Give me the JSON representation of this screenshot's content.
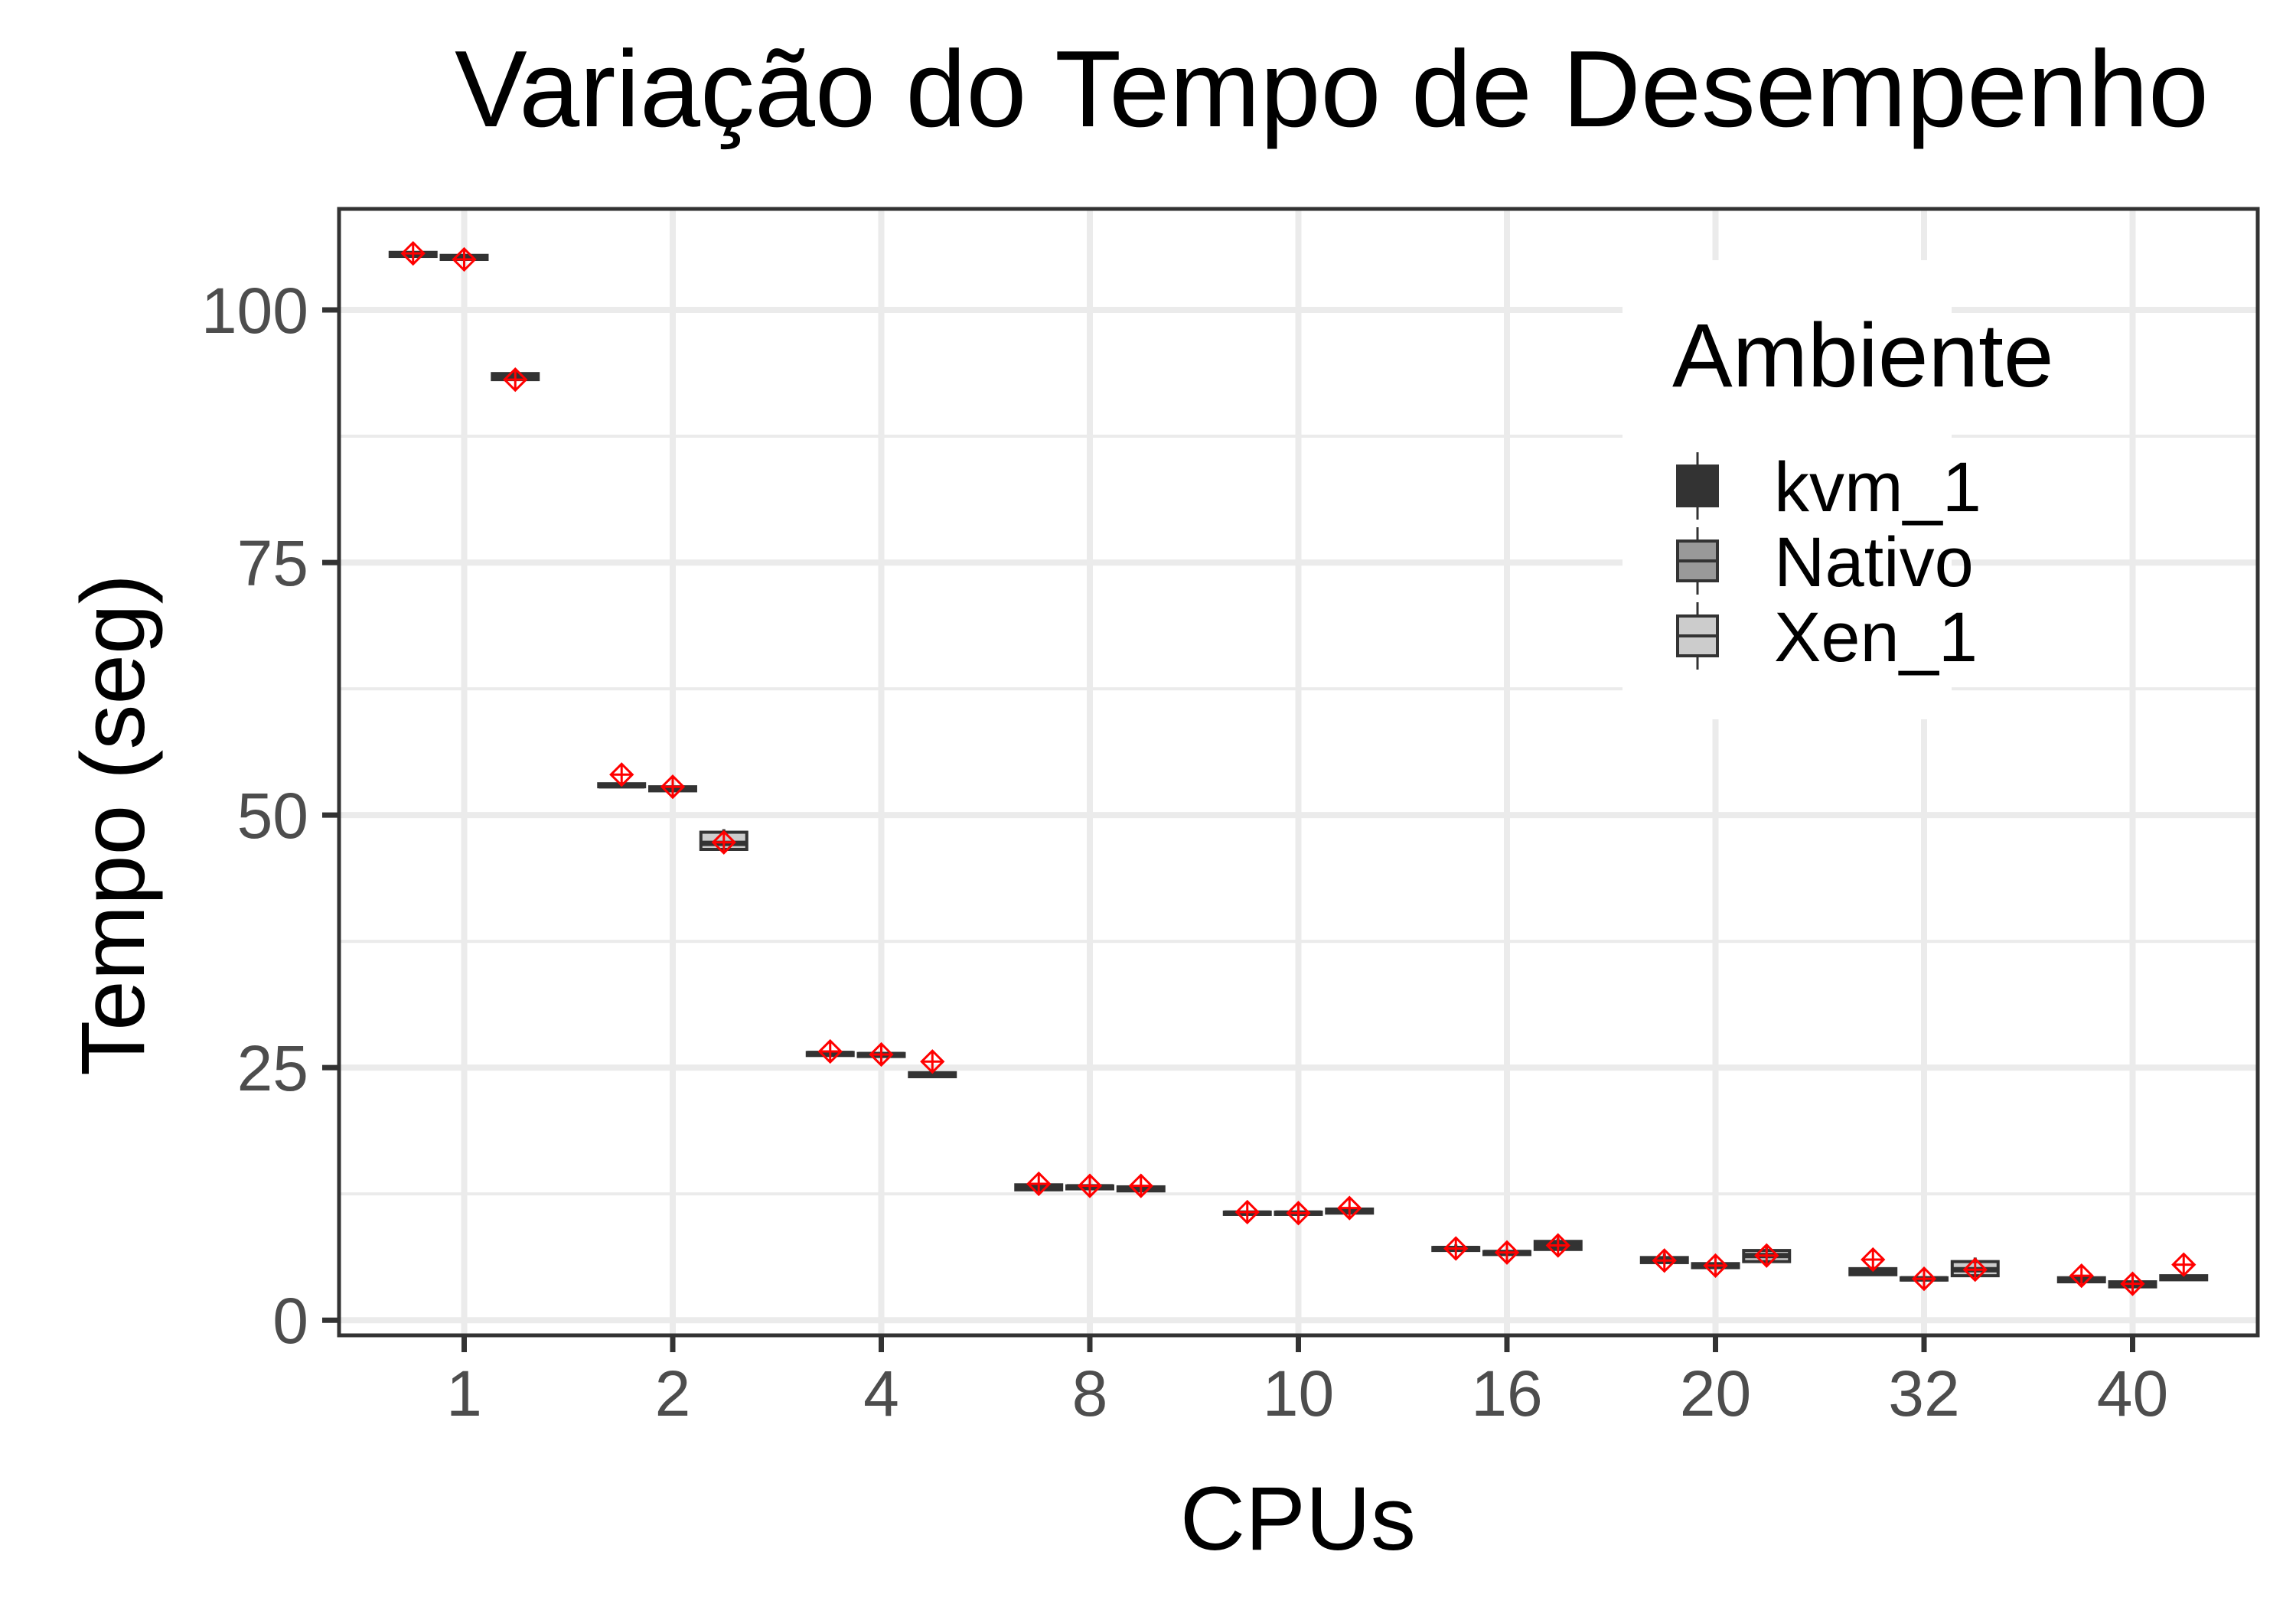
{
  "chart_data": {
    "type": "box",
    "title": "Variação do Tempo de Desempenho",
    "xlabel": "CPUs",
    "ylabel": "Tempo (seg)",
    "categories": [
      "1",
      "2",
      "4",
      "8",
      "10",
      "16",
      "20",
      "32",
      "40"
    ],
    "y_ticks": [
      "0",
      "25",
      "50",
      "75",
      "100"
    ],
    "ylim": [
      -1.5,
      110
    ],
    "grid": true,
    "legend": {
      "title": "Ambiente",
      "placement": "top-right"
    },
    "series": [
      {
        "name": "kvm_1",
        "fill": "#333333",
        "boxes": [
          {
            "q1": 105.3,
            "median": 105.5,
            "q3": 105.7,
            "whisker_low": 105.2,
            "whisker_high": 105.8,
            "mean": 105.6
          },
          {
            "q1": 52.8,
            "median": 52.9,
            "q3": 53.1,
            "whisker_low": 52.7,
            "whisker_high": 53.2,
            "mean": 54.0
          },
          {
            "q1": 26.2,
            "median": 26.4,
            "q3": 26.5,
            "whisker_low": 26.1,
            "whisker_high": 26.6,
            "mean": 26.6
          },
          {
            "q1": 12.9,
            "median": 13.2,
            "q3": 13.4,
            "whisker_low": 12.8,
            "whisker_high": 13.6,
            "mean": 13.5
          },
          {
            "q1": 10.5,
            "median": 10.6,
            "q3": 10.7,
            "whisker_low": 10.4,
            "whisker_high": 10.8,
            "mean": 10.7
          },
          {
            "q1": 6.9,
            "median": 7.1,
            "q3": 7.2,
            "whisker_low": 6.8,
            "whisker_high": 7.5,
            "mean": 7.1
          },
          {
            "q1": 5.7,
            "median": 6.0,
            "q3": 6.2,
            "whisker_low": 5.6,
            "whisker_high": 6.6,
            "mean": 5.9
          },
          {
            "q1": 4.5,
            "median": 4.8,
            "q3": 5.1,
            "whisker_low": 4.4,
            "whisker_high": 5.3,
            "mean": 6.0
          },
          {
            "q1": 3.8,
            "median": 4.0,
            "q3": 4.2,
            "whisker_low": 3.7,
            "whisker_high": 4.3,
            "mean": 4.4
          }
        ]
      },
      {
        "name": "Nativo",
        "fill": "#999999",
        "boxes": [
          {
            "q1": 105.0,
            "median": 105.2,
            "q3": 105.4,
            "whisker_low": 104.9,
            "whisker_high": 105.5,
            "mean": 105.0
          },
          {
            "q1": 52.4,
            "median": 52.6,
            "q3": 52.8,
            "whisker_low": 52.3,
            "whisker_high": 52.9,
            "mean": 52.8
          },
          {
            "q1": 26.1,
            "median": 26.3,
            "q3": 26.4,
            "whisker_low": 26.0,
            "whisker_high": 26.5,
            "mean": 26.3
          },
          {
            "q1": 13.0,
            "median": 13.2,
            "q3": 13.3,
            "whisker_low": 12.9,
            "whisker_high": 13.4,
            "mean": 13.3
          },
          {
            "q1": 10.5,
            "median": 10.6,
            "q3": 10.7,
            "whisker_low": 10.4,
            "whisker_high": 10.8,
            "mean": 10.6
          },
          {
            "q1": 6.5,
            "median": 6.7,
            "q3": 6.8,
            "whisker_low": 6.4,
            "whisker_high": 6.9,
            "mean": 6.7
          },
          {
            "q1": 5.2,
            "median": 5.4,
            "q3": 5.6,
            "whisker_low": 5.1,
            "whisker_high": 5.7,
            "mean": 5.4
          },
          {
            "q1": 4.0,
            "median": 4.1,
            "q3": 4.2,
            "whisker_low": 3.9,
            "whisker_high": 4.3,
            "mean": 4.1
          },
          {
            "q1": 3.3,
            "median": 3.6,
            "q3": 3.8,
            "whisker_low": 3.2,
            "whisker_high": 3.9,
            "mean": 3.6
          }
        ]
      },
      {
        "name": "Xen_1",
        "fill": "#cccccc",
        "boxes": [
          {
            "q1": 93.1,
            "median": 93.4,
            "q3": 93.7,
            "whisker_low": 93.0,
            "whisker_high": 93.9,
            "mean": 93.1
          },
          {
            "q1": 46.6,
            "median": 47.2,
            "q3": 48.3,
            "whisker_low": 46.5,
            "whisker_high": 48.6,
            "mean": 47.3
          },
          {
            "q1": 24.1,
            "median": 24.3,
            "q3": 24.5,
            "whisker_low": 24.0,
            "whisker_high": 24.6,
            "mean": 25.6
          },
          {
            "q1": 12.8,
            "median": 13.0,
            "q3": 13.2,
            "whisker_low": 12.7,
            "whisker_high": 13.3,
            "mean": 13.3
          },
          {
            "q1": 10.6,
            "median": 10.8,
            "q3": 11.0,
            "whisker_low": 10.5,
            "whisker_high": 11.1,
            "mean": 11.1
          },
          {
            "q1": 7.0,
            "median": 7.4,
            "q3": 7.8,
            "whisker_low": 6.9,
            "whisker_high": 8.1,
            "mean": 7.4
          },
          {
            "q1": 5.8,
            "median": 6.4,
            "q3": 6.9,
            "whisker_low": 5.6,
            "whisker_high": 7.2,
            "mean": 6.4
          },
          {
            "q1": 4.4,
            "median": 5.0,
            "q3": 5.8,
            "whisker_low": 4.3,
            "whisker_high": 6.2,
            "mean": 5.0
          },
          {
            "q1": 4.0,
            "median": 4.2,
            "q3": 4.4,
            "whisker_low": 3.9,
            "whisker_high": 4.6,
            "mean": 5.5
          }
        ]
      }
    ],
    "mean_marker_color": "#ff0000"
  }
}
